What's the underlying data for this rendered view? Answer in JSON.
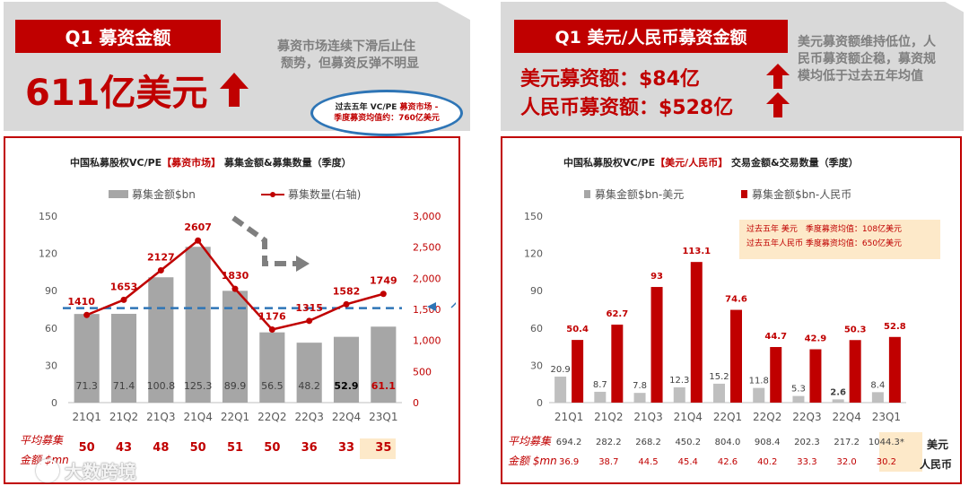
{
  "left_header": {
    "tag": "Q1 募资金额",
    "big_value": "611亿美元",
    "note_lines": [
      "募资市场连续下滑后止住",
      "颓势，但募资反弹不明显"
    ],
    "bubble_lines": [
      "过去五年 VC/PE",
      "募资市场 -",
      "季度募资均值约：760亿美元"
    ]
  },
  "right_header": {
    "tag": "Q1 美元/人民币募资金额",
    "usd_line": "美元募资额：$84亿",
    "rmb_line": "人民币募资额：$528亿",
    "note_lines": [
      "美元募资额维持低位，人",
      "民币募资额企稳，募资规",
      "模均低于过去五年均值"
    ]
  },
  "watermark": "大数跨境",
  "left_chart_title": {
    "prefix": "中国私募股权VC/PE",
    "highlight": "【募资市场】",
    "suffix": " 募集金额&募集数量（季度）"
  },
  "right_chart_title": {
    "prefix": "中国私募股权VC/PE",
    "highlight": "【美元/人民币】",
    "suffix": " 交易金额&交易数量（季度）"
  },
  "right_info_box": [
    "过去五年 美元　季度募资均值：108亿美元",
    "过去五年人民币 季度募资均值：650亿美元"
  ],
  "bottom_left": {
    "label_lines": [
      "平均募集",
      "金额 $mn"
    ],
    "values": [
      "50",
      "43",
      "48",
      "50",
      "51",
      "50",
      "36",
      "33",
      "35"
    ]
  },
  "bottom_right": {
    "label_lines": [
      "平均募集",
      "金额 $mn"
    ],
    "usd_values": [
      "694.2",
      "282.2",
      "268.2",
      "450.2",
      "804.0",
      "908.4",
      "202.3",
      "217.2",
      "1044.3*"
    ],
    "rmb_values": [
      "36.9",
      "38.7",
      "44.5",
      "45.4",
      "42.6",
      "40.2",
      "33.3",
      "32.0",
      "30.2"
    ],
    "usd_label": "美元",
    "rmb_label": "人民币"
  },
  "colors": {
    "red": "#c00000",
    "gray_bar": "#a6a6a6",
    "dashed_blue": "#2e75b6",
    "highlight": "#fde9c9",
    "header_gray": "#d9d9d9"
  },
  "chart_data": [
    {
      "type": "bar",
      "categories": [
        "21Q1",
        "21Q2",
        "21Q3",
        "21Q4",
        "22Q1",
        "22Q2",
        "22Q3",
        "22Q4",
        "23Q1"
      ],
      "series": [
        {
          "name": "募集金额$bn",
          "type": "bar",
          "axis": "left",
          "values": [
            71.3,
            71.4,
            100.8,
            125.3,
            89.9,
            56.5,
            48.2,
            52.9,
            61.1
          ]
        },
        {
          "name": "募集数量(右轴)",
          "type": "line",
          "axis": "right",
          "values": [
            1410,
            1653,
            2127,
            2607,
            1830,
            1176,
            1315,
            1582,
            1749
          ]
        }
      ],
      "ylim": [
        0,
        150
      ],
      "yticks": [
        "0",
        "30",
        "60",
        "90",
        "120",
        "150"
      ],
      "y2lim": [
        0,
        3000
      ],
      "y2ticks": [
        "0",
        "500",
        "1,000",
        "1,500",
        "2,000",
        "2,500",
        "3,000"
      ],
      "reference_line": 76,
      "legend": "top"
    },
    {
      "type": "bar",
      "categories": [
        "21Q1",
        "21Q2",
        "21Q3",
        "21Q4",
        "22Q1",
        "22Q2",
        "22Q3",
        "22Q4",
        "23Q1"
      ],
      "series": [
        {
          "name": "募集金额$bn-美元",
          "values": [
            20.9,
            8.7,
            7.8,
            12.3,
            15.2,
            11.8,
            5.3,
            2.6,
            8.4
          ]
        },
        {
          "name": "募集金额$bn-人民币",
          "values": [
            50.4,
            62.7,
            93,
            113.1,
            74.6,
            44.7,
            42.9,
            50.3,
            52.8
          ]
        }
      ],
      "ylim": [
        0,
        150
      ],
      "yticks": [
        "0",
        "30",
        "60",
        "90",
        "120",
        "150"
      ],
      "legend": "top"
    }
  ]
}
